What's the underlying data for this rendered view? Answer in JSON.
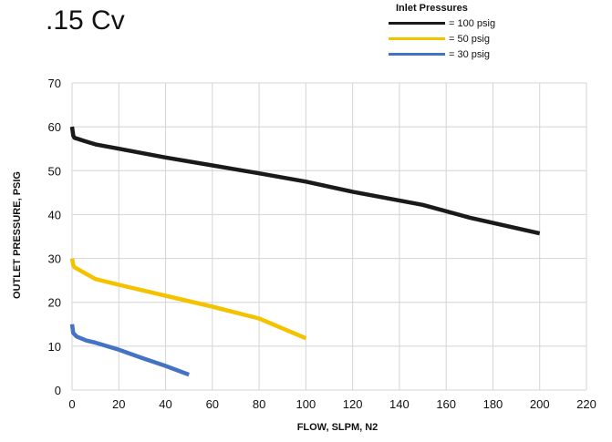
{
  "chart_data": {
    "type": "line",
    "title": ".15 Cv",
    "xlabel": "FLOW, SLPM, N2",
    "ylabel": "OUTLET PRESSURE, PSIG",
    "xlim": [
      0,
      220
    ],
    "ylim": [
      0,
      70
    ],
    "xticks": [
      "0",
      "20",
      "40",
      "60",
      "80",
      "100",
      "120",
      "140",
      "160",
      "180",
      "200",
      "220"
    ],
    "yticks": [
      "0",
      "10",
      "20",
      "30",
      "40",
      "50",
      "60",
      "70"
    ],
    "grid": true,
    "legend": {
      "title": "Inlet Pressures",
      "position": "top-right"
    },
    "series": [
      {
        "name": "= 100 psig",
        "color": "#1a1a1a",
        "points": [
          [
            0,
            60
          ],
          [
            0.5,
            58
          ],
          [
            1,
            57.5
          ],
          [
            5,
            56.8
          ],
          [
            10,
            56
          ],
          [
            20,
            55
          ],
          [
            40,
            53
          ],
          [
            60,
            51.2
          ],
          [
            80,
            49.4
          ],
          [
            100,
            47.5
          ],
          [
            120,
            45.2
          ],
          [
            150,
            42.2
          ],
          [
            170,
            39.3
          ],
          [
            200,
            35.7
          ]
        ]
      },
      {
        "name": "= 50 psig",
        "color": "#f5c200",
        "points": [
          [
            0,
            30
          ],
          [
            0.5,
            28.5
          ],
          [
            1,
            28
          ],
          [
            5,
            26.8
          ],
          [
            10,
            25.3
          ],
          [
            20,
            24
          ],
          [
            40,
            21.5
          ],
          [
            60,
            19
          ],
          [
            80,
            16.3
          ],
          [
            100,
            11.8
          ]
        ]
      },
      {
        "name": "= 30 psig",
        "color": "#4472c4",
        "points": [
          [
            0,
            15
          ],
          [
            0.5,
            13
          ],
          [
            2,
            12.2
          ],
          [
            6,
            11.3
          ],
          [
            10,
            10.8
          ],
          [
            20,
            9.2
          ],
          [
            30,
            7.3
          ],
          [
            40,
            5.5
          ],
          [
            50,
            3.5
          ]
        ]
      }
    ]
  }
}
